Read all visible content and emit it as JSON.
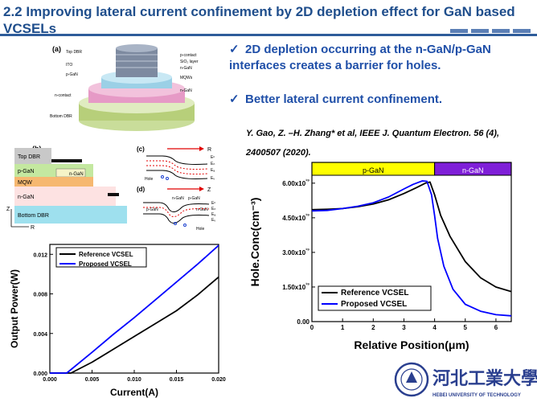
{
  "slide": {
    "title": "2.2 Improving lateral current confinement by 2D depletion effect for GaN based VCSELs",
    "bullets": [
      "2D depletion occurring at the n-GaN/p-GaN interfaces creates a barrier for holes.",
      "Better lateral current confinement."
    ],
    "citation": "Y. Gao, Z. –H. Zhang* et al, IEEE J. Quantum Electron. 56 (4), 2400507 (2020)."
  },
  "figure_a": {
    "label": "(a)",
    "layers": [
      "Top DBR",
      "ITO",
      "p-GaN",
      "n-contact",
      "Bottom DBR",
      "p-contact",
      "SiO₂ layer",
      "n-GaN",
      "MQWs",
      "n-GaN"
    ]
  },
  "figure_b": {
    "label": "(b)",
    "layers": [
      "Top DBR",
      "p-GaN",
      "n-GaN",
      "MQW",
      "n-GaN",
      "Bottom DBR"
    ],
    "axis_z": "Z",
    "axis_r": "R"
  },
  "figure_c": {
    "label": "(c)",
    "axis": "R",
    "bands": [
      "Eᶜ",
      "Eₙ",
      "Eₐ",
      "Eᵥ"
    ],
    "hole": "Hole"
  },
  "figure_d": {
    "label": "(d)",
    "axis": "Z",
    "regions": [
      "n-GaN",
      "p-GaN",
      "p-GaN",
      "n-GaN"
    ],
    "bands": [
      "Eᶜ",
      "Eₙ",
      "Eₐ",
      "Eᵥ"
    ],
    "hole": "Hole"
  },
  "logo": {
    "name_cn": "河北工業大學",
    "name_en": "HEBEI UNIVERSITY OF TECHNOLOGY",
    "colors": {
      "text": "#2a3f8f",
      "seal": "#2a3f8f"
    }
  },
  "colors": {
    "title": "#1f4e8c",
    "bullet": "#1f4fa8",
    "p_region": "#ffff00",
    "n_region": "#7f1fd8",
    "reference": "#000000",
    "proposed": "#0000ff"
  },
  "chart_data": [
    {
      "type": "line",
      "title": "",
      "xlabel": "Current(A)",
      "ylabel": "Output Power(W)",
      "xlim": [
        0,
        0.02
      ],
      "ylim": [
        0,
        0.013
      ],
      "xticks": [
        "0.000",
        "0.005",
        "0.010",
        "0.015",
        "0.020"
      ],
      "xtick_values": [
        0,
        0.005,
        0.01,
        0.015,
        0.02
      ],
      "yticks": [
        "0.000",
        "0.004",
        "0.008",
        "0.012"
      ],
      "ytick_values": [
        0,
        0.004,
        0.008,
        0.012
      ],
      "legend": [
        "Reference VCSEL",
        "Proposed VCSEL"
      ],
      "legend_position": "top-left",
      "series": [
        {
          "name": "Reference VCSEL",
          "color": "#000000",
          "x": [
            0,
            0.0025,
            0.005,
            0.0075,
            0.01,
            0.0125,
            0.015,
            0.0175,
            0.02
          ],
          "y": [
            0,
            0,
            0.0011,
            0.0024,
            0.0037,
            0.005,
            0.0063,
            0.0079,
            0.0097
          ]
        },
        {
          "name": "Proposed VCSEL",
          "color": "#0000ff",
          "x": [
            0,
            0.002,
            0.005,
            0.0075,
            0.01,
            0.0125,
            0.015,
            0.0175,
            0.02
          ],
          "y": [
            0,
            0,
            0.0021,
            0.0039,
            0.0056,
            0.0074,
            0.0092,
            0.011,
            0.0129
          ]
        }
      ]
    },
    {
      "type": "line",
      "title": "",
      "xlabel": "Relative Position(μm)",
      "ylabel": "Hole.Conc(cm⁻³)",
      "xlim": [
        0,
        6.5
      ],
      "ylim": [
        0,
        6.9e+19
      ],
      "xticks": [
        "0",
        "1",
        "2",
        "3",
        "4",
        "5",
        "6"
      ],
      "xtick_values": [
        0,
        1,
        2,
        3,
        4,
        5,
        6
      ],
      "yticks": [
        "0.00",
        "1.50x10¹⁹",
        "3.00x10¹⁹",
        "4.50x10¹⁹",
        "6.00x10¹⁹"
      ],
      "ytick_values": [
        0,
        1.5e+19,
        3e+19,
        4.5e+19,
        6e+19
      ],
      "regions": [
        {
          "label": "p-GaN",
          "from": 0,
          "to": 4.0,
          "color": "#ffff00"
        },
        {
          "label": "n-GaN",
          "from": 4.0,
          "to": 6.5,
          "color": "#7f1fd8"
        }
      ],
      "legend": [
        "Reference VCSEL",
        "Proposed VCSEL"
      ],
      "legend_position": "bottom-left",
      "series": [
        {
          "name": "Reference VCSEL",
          "color": "#000000",
          "x": [
            0,
            0.5,
            1,
            1.5,
            2,
            2.5,
            3,
            3.4,
            3.7,
            3.85,
            4.0,
            4.2,
            4.5,
            5.0,
            5.5,
            6.0,
            6.5
          ],
          "y": [
            4.85e+19,
            4.87e+19,
            4.9e+19,
            4.98e+19,
            5.1e+19,
            5.28e+19,
            5.55e+19,
            5.8e+19,
            6e+19,
            6.05e+19,
            5.5e+19,
            4.6e+19,
            3.7e+19,
            2.6e+19,
            1.9e+19,
            1.5e+19,
            1.3e+19
          ]
        },
        {
          "name": "Proposed VCSEL",
          "color": "#0000ff",
          "x": [
            0,
            0.5,
            1,
            1.5,
            2,
            2.5,
            3,
            3.3,
            3.6,
            3.75,
            3.9,
            4.0,
            4.1,
            4.3,
            4.6,
            5.0,
            5.5,
            6.0,
            6.5
          ],
          "y": [
            4.8e+19,
            4.82e+19,
            4.9e+19,
            5e+19,
            5.15e+19,
            5.4e+19,
            5.75e+19,
            5.95e+19,
            6.1e+19,
            6.08e+19,
            5.5e+19,
            4.6e+19,
            3.6e+19,
            2.4e+19,
            1.4e+19,
            7.5e+18,
            4.5e+18,
            3e+18,
            2.5e+18
          ]
        }
      ]
    }
  ]
}
